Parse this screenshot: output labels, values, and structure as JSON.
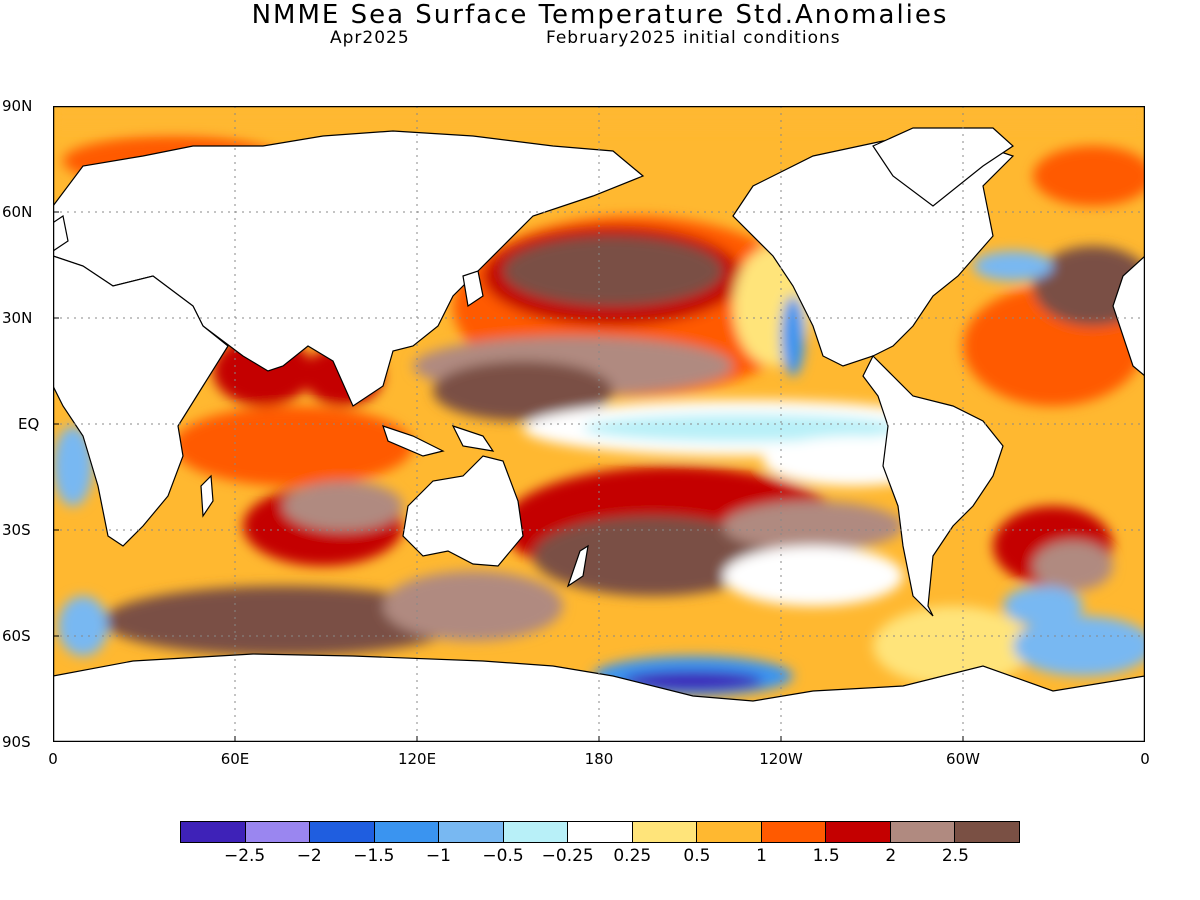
{
  "title": "NMME Sea Surface Temperature Std.Anomalies",
  "subtitle_date": "Apr2025",
  "subtitle_init": "February2025 initial conditions",
  "lat_labels": [
    "90N",
    "60N",
    "30N",
    "EQ",
    "30S",
    "60S",
    "90S"
  ],
  "lon_labels": [
    "0",
    "60E",
    "120E",
    "180",
    "120W",
    "60W",
    "0"
  ],
  "colorbar": {
    "colors": [
      "#3e22b8",
      "#9a86f0",
      "#1f5ee0",
      "#3a94f0",
      "#78b8f2",
      "#b8f0f8",
      "#ffffff",
      "#ffe47a",
      "#ffb830",
      "#ff5a00",
      "#c40000",
      "#b08a80",
      "#7a5044"
    ],
    "labels": [
      "-2.5",
      "-2",
      "-1.5",
      "-1",
      "-0.5",
      "-0.25",
      "0.25",
      "0.5",
      "1",
      "1.5",
      "2",
      "2.5"
    ]
  },
  "colors": {
    "land": "#ffffff",
    "coast": "#000000",
    "grid": "#888888"
  }
}
